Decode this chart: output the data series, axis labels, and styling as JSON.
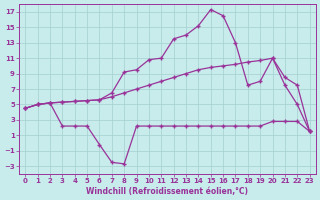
{
  "xlabel": "Windchill (Refroidissement éolien,°C)",
  "bg_color": "#c8ecec",
  "line_color": "#993399",
  "grid_color": "#aad4d4",
  "ylim": [
    -4,
    18
  ],
  "xlim": [
    -0.5,
    23.5
  ],
  "yticks": [
    -3,
    -1,
    1,
    3,
    5,
    7,
    9,
    11,
    13,
    15,
    17
  ],
  "xticks": [
    0,
    1,
    2,
    3,
    4,
    5,
    6,
    7,
    8,
    9,
    10,
    11,
    12,
    13,
    14,
    15,
    16,
    17,
    18,
    19,
    20,
    21,
    22,
    23
  ],
  "line1_x": [
    0,
    1,
    2,
    3,
    4,
    5,
    6,
    7,
    8,
    9,
    10,
    11,
    12,
    13,
    14,
    15,
    16,
    17,
    18,
    19,
    20,
    21,
    22,
    23
  ],
  "line1_y": [
    4.5,
    5.0,
    5.2,
    5.3,
    5.4,
    5.5,
    5.6,
    6.5,
    9.2,
    9.5,
    10.8,
    11.0,
    13.5,
    14.0,
    15.2,
    17.3,
    16.5,
    13.0,
    7.5,
    8.0,
    11.0,
    7.5,
    5.0,
    1.5
  ],
  "line2_x": [
    0,
    1,
    2,
    3,
    4,
    5,
    6,
    7,
    8,
    9,
    10,
    11,
    12,
    13,
    14,
    15,
    16,
    17,
    18,
    19,
    20,
    21,
    22,
    23
  ],
  "line2_y": [
    4.5,
    5.0,
    5.2,
    5.3,
    5.4,
    5.5,
    5.6,
    6.0,
    6.5,
    7.0,
    7.5,
    8.0,
    8.5,
    9.0,
    9.5,
    9.8,
    10.0,
    10.2,
    10.5,
    10.7,
    11.0,
    8.5,
    7.5,
    1.5
  ],
  "line3_x": [
    0,
    1,
    2,
    3,
    4,
    5,
    6,
    7,
    8,
    9,
    10,
    11,
    12,
    13,
    14,
    15,
    16,
    17,
    18,
    19,
    20,
    21,
    22,
    23
  ],
  "line3_y": [
    4.5,
    5.0,
    5.2,
    2.2,
    2.2,
    2.2,
    -0.2,
    -2.5,
    -2.7,
    2.2,
    2.2,
    2.2,
    2.2,
    2.2,
    2.2,
    2.2,
    2.2,
    2.2,
    2.2,
    2.2,
    2.8,
    2.8,
    2.8,
    1.5
  ]
}
